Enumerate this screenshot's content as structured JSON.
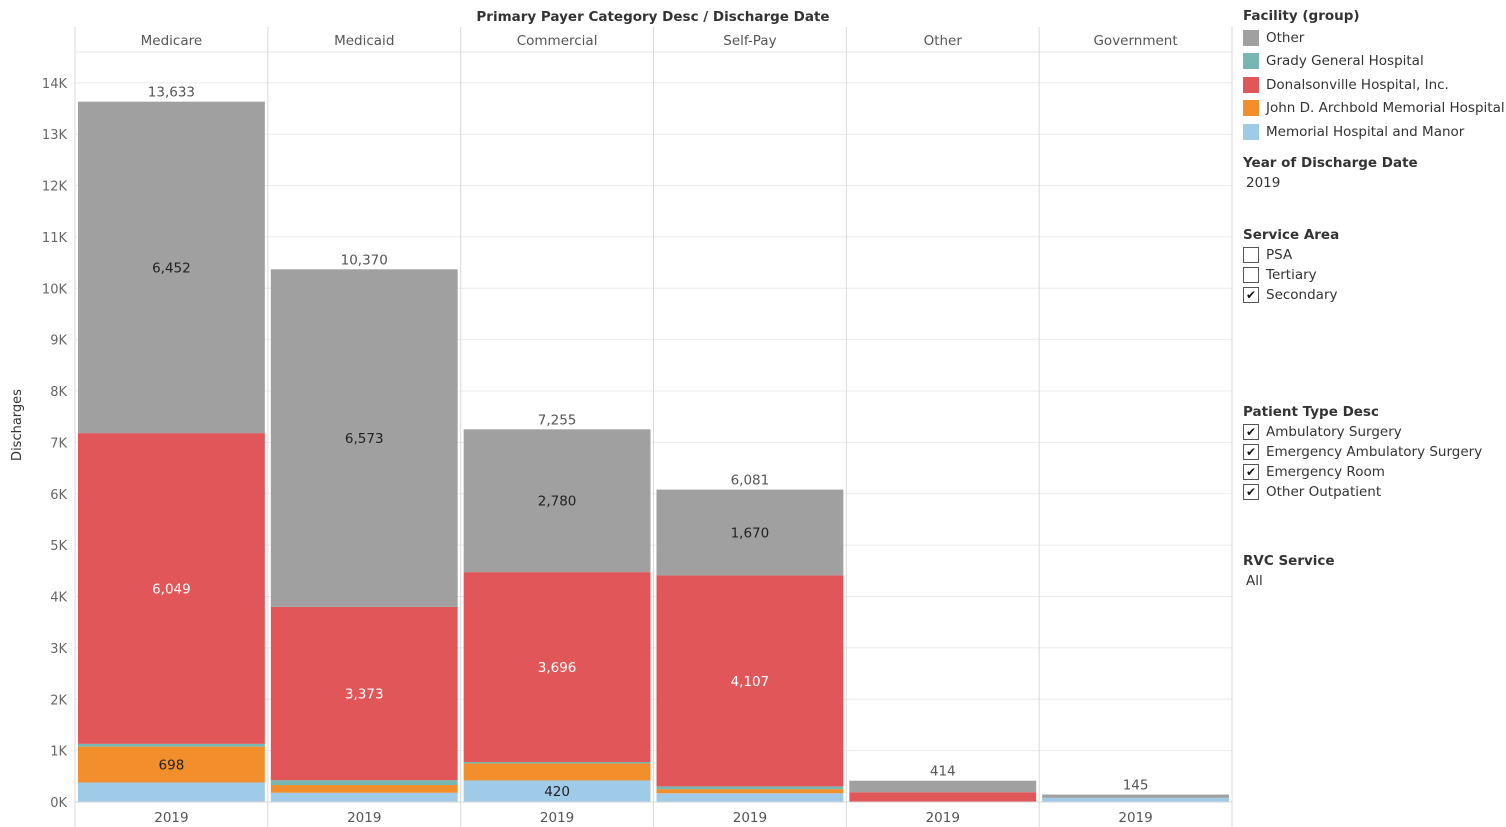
{
  "header": "Primary Payer Category Desc  /  Discharge Date",
  "colors": {
    "Other": "#a0a0a0",
    "Grady General Hospital": "#76b7b2",
    "Donalsonville Hospital, Inc.": "#e15759",
    "John D. Archbold Memorial Hospital": "#f28e2b",
    "Memorial Hospital and Manor": "#a0cbe8"
  },
  "chart_data": {
    "type": "bar",
    "stacked": true,
    "ylabel": "Discharges",
    "ylim": [
      0,
      14700
    ],
    "yticks": [
      0,
      1000,
      2000,
      3000,
      4000,
      5000,
      6000,
      7000,
      8000,
      9000,
      10000,
      11000,
      12000,
      13000,
      14000
    ],
    "ytick_labels": [
      "0K",
      "1K",
      "2K",
      "3K",
      "4K",
      "5K",
      "6K",
      "7K",
      "8K",
      "9K",
      "10K",
      "11K",
      "12K",
      "13K",
      "14K"
    ],
    "grid": true,
    "legend_position": "right",
    "categories": [
      "Medicare",
      "Medicaid",
      "Commercial",
      "Self-Pay",
      "Other",
      "Government"
    ],
    "x_labels": [
      "2019",
      "2019",
      "2019",
      "2019",
      "2019",
      "2019"
    ],
    "series": [
      {
        "name": "Memorial Hospital and Manor",
        "values": [
          380,
          180,
          420,
          170,
          0,
          80
        ]
      },
      {
        "name": "John D. Archbold Memorial Hospital",
        "values": [
          698,
          150,
          330,
          80,
          0,
          0
        ]
      },
      {
        "name": "Grady General Hospital",
        "values": [
          54,
          94,
          29,
          54,
          0,
          0
        ]
      },
      {
        "name": "Donalsonville Hospital, Inc.",
        "values": [
          6049,
          3373,
          3696,
          4107,
          190,
          0
        ]
      },
      {
        "name": "Other",
        "values": [
          6452,
          6573,
          2780,
          1670,
          224,
          65
        ]
      }
    ],
    "totals": [
      13633,
      10370,
      7255,
      6081,
      414,
      145
    ],
    "segment_labels": [
      {
        "category": 0,
        "series": "Other",
        "text": "6,452"
      },
      {
        "category": 0,
        "series": "Donalsonville Hospital, Inc.",
        "text": "6,049"
      },
      {
        "category": 0,
        "series": "John D. Archbold Memorial Hospital",
        "text": "698"
      },
      {
        "category": 1,
        "series": "Other",
        "text": "6,573"
      },
      {
        "category": 1,
        "series": "Donalsonville Hospital, Inc.",
        "text": "3,373"
      },
      {
        "category": 2,
        "series": "Other",
        "text": "2,780"
      },
      {
        "category": 2,
        "series": "Donalsonville Hospital, Inc.",
        "text": "3,696"
      },
      {
        "category": 2,
        "series": "Memorial Hospital and Manor",
        "text": "420"
      },
      {
        "category": 3,
        "series": "Other",
        "text": "1,670"
      },
      {
        "category": 3,
        "series": "Donalsonville Hospital, Inc.",
        "text": "4,107"
      }
    ],
    "total_labels": [
      "13,633",
      "10,370",
      "7,255",
      "6,081",
      "414",
      "145"
    ]
  },
  "legend": {
    "title": "Facility (group)",
    "items": [
      {
        "label": "Other",
        "color": "#a0a0a0"
      },
      {
        "label": "Grady General Hospital",
        "color": "#76b7b2"
      },
      {
        "label": "Donalsonville Hospital, Inc.",
        "color": "#e15759"
      },
      {
        "label": "John D. Archbold Memorial Hospital",
        "color": "#f28e2b"
      },
      {
        "label": "Memorial Hospital and Manor",
        "color": "#a0cbe8"
      }
    ]
  },
  "filters": {
    "year": {
      "title": "Year of Discharge Date",
      "value": "2019"
    },
    "service_area": {
      "title": "Service Area",
      "options": [
        {
          "label": "PSA",
          "checked": false
        },
        {
          "label": "Tertiary",
          "checked": false
        },
        {
          "label": "Secondary",
          "checked": true
        }
      ]
    },
    "patient_type": {
      "title": "Patient Type Desc",
      "options": [
        {
          "label": "Ambulatory Surgery",
          "checked": true
        },
        {
          "label": "Emergency Ambulatory Surgery",
          "checked": true
        },
        {
          "label": "Emergency Room",
          "checked": true
        },
        {
          "label": "Other Outpatient",
          "checked": true
        }
      ]
    },
    "rvc_service": {
      "title": "RVC Service",
      "value": "All"
    }
  }
}
